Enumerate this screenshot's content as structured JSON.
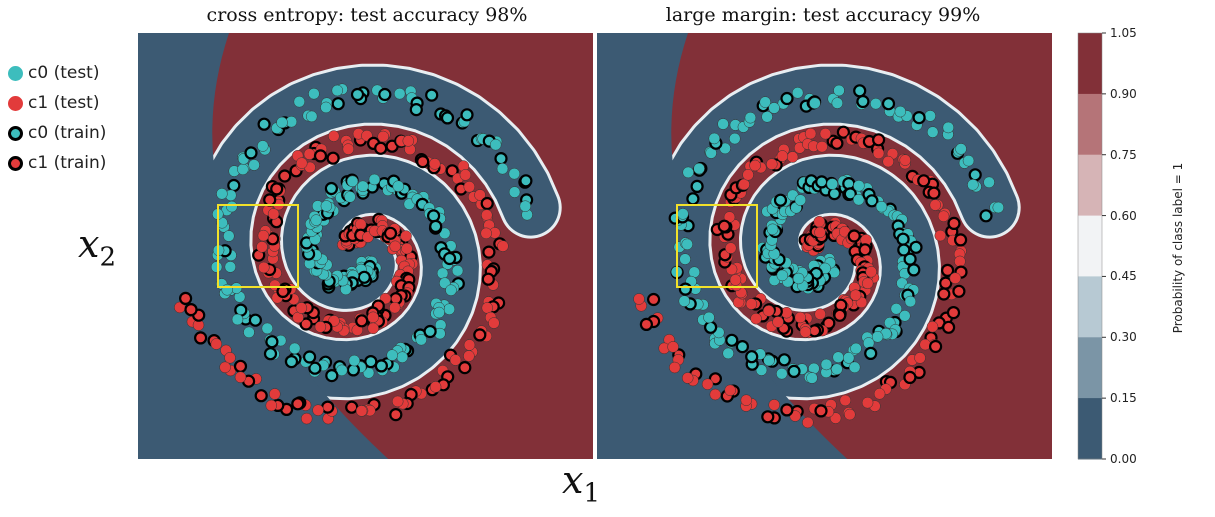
{
  "chart_data": [
    {
      "type": "scatter",
      "title": "cross entropy: test accuracy 98%",
      "xlabel": "x1",
      "ylabel": "x2",
      "background": "decision-region contour (probability of class label = 1)",
      "series": [
        {
          "name": "c0 (test)",
          "color": "#3dbdbd"
        },
        {
          "name": "c1 (test)",
          "color": "#e23b3b"
        },
        {
          "name": "c0 (train)",
          "color": "#3dbdbd",
          "edge": "#000000"
        },
        {
          "name": "c1 (train)",
          "color": "#e23b3b",
          "edge": "#000000"
        }
      ],
      "highlight_box": "yellow rectangle"
    },
    {
      "type": "scatter",
      "title": "large margin: test accuracy 99%",
      "background": "decision-region contour (probability of class label = 1)",
      "highlight_box": "yellow rectangle"
    }
  ],
  "legend": {
    "items": [
      {
        "label": "c0 (test)",
        "fill": "#3dbdbd",
        "edge": "#3dbdbd"
      },
      {
        "label": "c1 (test)",
        "fill": "#e23b3b",
        "edge": "#e23b3b"
      },
      {
        "label": "c0 (train)",
        "fill": "#3dbdbd",
        "edge": "#000000"
      },
      {
        "label": "c1 (train)",
        "fill": "#e23b3b",
        "edge": "#000000"
      }
    ]
  },
  "axes": {
    "x1_main": "x",
    "x1_sub": "1",
    "x2_main": "x",
    "x2_sub": "2"
  },
  "colorbar": {
    "label": "Probability of class label = 1",
    "ticks": [
      "1.05",
      "0.90",
      "0.75",
      "0.60",
      "0.45",
      "0.30",
      "0.15",
      "0.00"
    ],
    "colors": [
      "#823038",
      "#b57478",
      "#d6b4b6",
      "#f2f3f5",
      "#b7c9d3",
      "#7b95a6",
      "#3c5a73"
    ]
  },
  "colors": {
    "class0": "#3dbdbd",
    "class1": "#e23b3b",
    "region0": "#3c5a73",
    "region1": "#823038",
    "box": "#f2e12a"
  }
}
